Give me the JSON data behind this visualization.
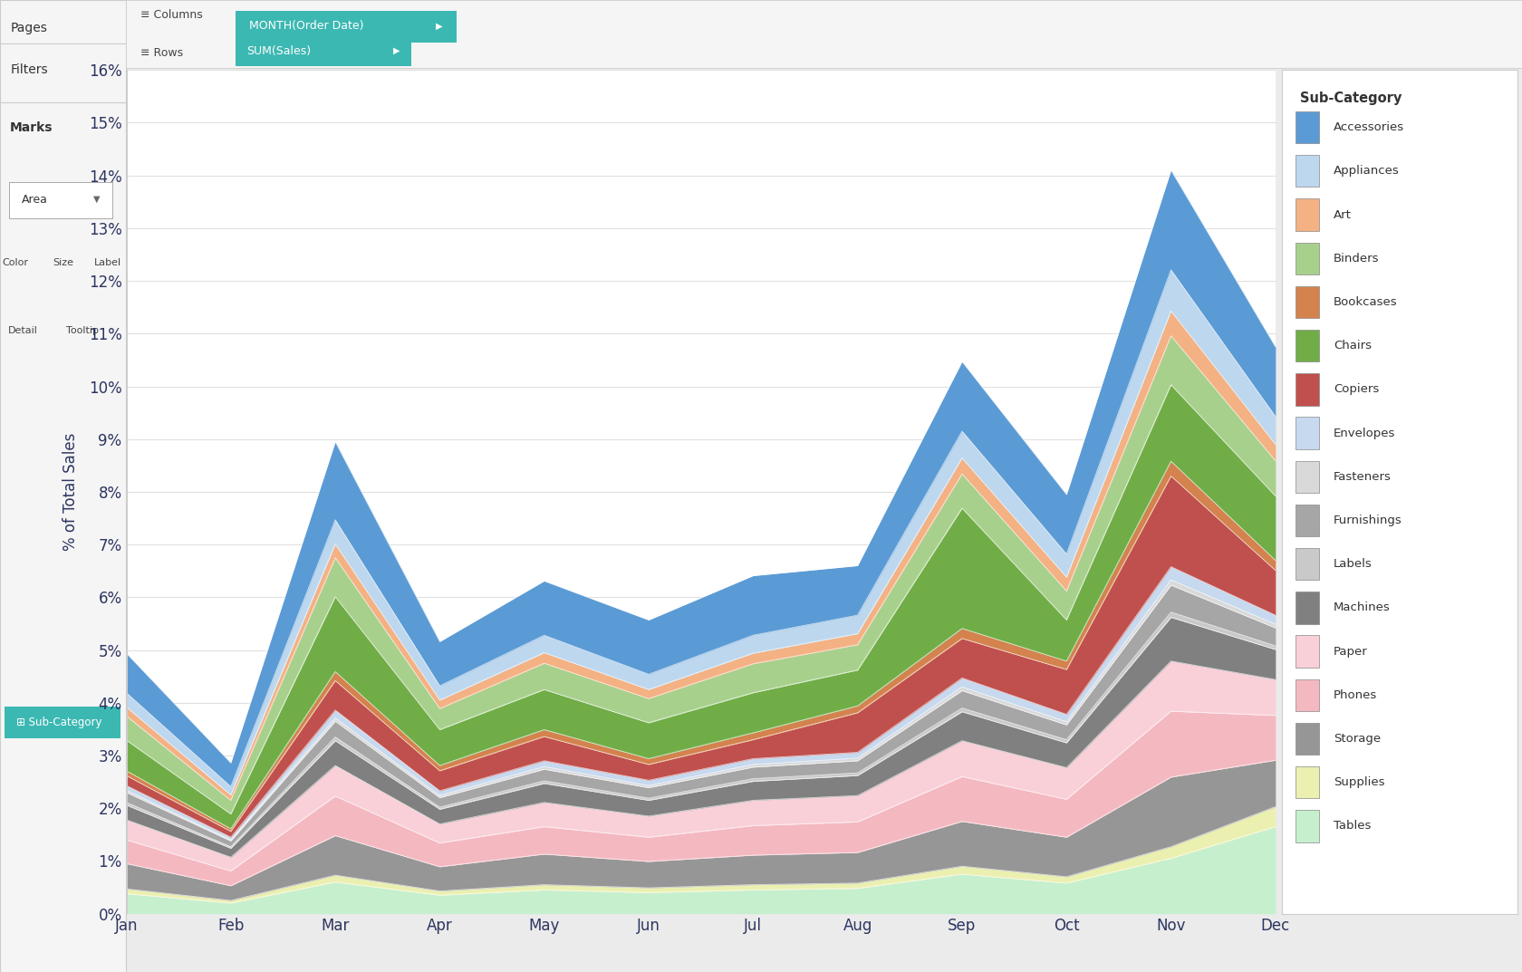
{
  "months": [
    "Jan",
    "Feb",
    "Mar",
    "Apr",
    "May",
    "Jun",
    "Jul",
    "Aug",
    "Sep",
    "Oct",
    "Nov",
    "Dec"
  ],
  "legend_items": [
    "Accessories",
    "Appliances",
    "Art",
    "Binders",
    "Bookcases",
    "Chairs",
    "Copiers",
    "Envelopes",
    "Fasteners",
    "Furnishings",
    "Labels",
    "Machines",
    "Paper",
    "Phones",
    "Storage",
    "Supplies",
    "Tables"
  ],
  "stack_order": [
    "Tables",
    "Supplies",
    "Storage",
    "Phones",
    "Paper",
    "Machines",
    "Labels",
    "Furnishings",
    "Fasteners",
    "Envelopes",
    "Copiers",
    "Bookcases",
    "Chairs",
    "Binders",
    "Art",
    "Appliances",
    "Accessories"
  ],
  "series_data": {
    "Tables": [
      0.38,
      0.2,
      0.6,
      0.35,
      0.45,
      0.4,
      0.45,
      0.48,
      0.75,
      0.58,
      1.05,
      1.65
    ],
    "Supplies": [
      0.09,
      0.05,
      0.13,
      0.08,
      0.1,
      0.09,
      0.1,
      0.1,
      0.15,
      0.12,
      0.22,
      0.38
    ],
    "Storage": [
      0.48,
      0.28,
      0.75,
      0.46,
      0.58,
      0.5,
      0.56,
      0.58,
      0.85,
      0.75,
      1.32,
      0.88
    ],
    "Phones": [
      0.45,
      0.28,
      0.75,
      0.45,
      0.52,
      0.46,
      0.56,
      0.58,
      0.85,
      0.72,
      1.25,
      0.85
    ],
    "Paper": [
      0.38,
      0.26,
      0.58,
      0.36,
      0.46,
      0.4,
      0.48,
      0.5,
      0.68,
      0.6,
      0.95,
      0.68
    ],
    "Machines": [
      0.28,
      0.17,
      0.47,
      0.28,
      0.36,
      0.3,
      0.36,
      0.38,
      0.55,
      0.47,
      0.83,
      0.57
    ],
    "Labels": [
      0.05,
      0.03,
      0.07,
      0.04,
      0.05,
      0.04,
      0.05,
      0.05,
      0.07,
      0.06,
      0.1,
      0.07
    ],
    "Furnishings": [
      0.19,
      0.11,
      0.3,
      0.18,
      0.22,
      0.2,
      0.22,
      0.23,
      0.33,
      0.28,
      0.51,
      0.34
    ],
    "Fasteners": [
      0.04,
      0.02,
      0.06,
      0.04,
      0.05,
      0.04,
      0.05,
      0.05,
      0.07,
      0.06,
      0.1,
      0.07
    ],
    "Envelopes": [
      0.09,
      0.05,
      0.15,
      0.09,
      0.11,
      0.1,
      0.11,
      0.11,
      0.17,
      0.14,
      0.25,
      0.17
    ],
    "Copiers": [
      0.19,
      0.11,
      0.56,
      0.38,
      0.46,
      0.3,
      0.36,
      0.75,
      0.75,
      0.85,
      1.72,
      0.85
    ],
    "Bookcases": [
      0.09,
      0.05,
      0.17,
      0.1,
      0.13,
      0.11,
      0.13,
      0.13,
      0.19,
      0.16,
      0.28,
      0.19
    ],
    "Chairs": [
      0.58,
      0.28,
      1.42,
      0.68,
      0.76,
      0.68,
      0.76,
      0.68,
      2.28,
      0.78,
      1.45,
      1.22
    ],
    "Binders": [
      0.46,
      0.26,
      0.74,
      0.4,
      0.5,
      0.46,
      0.55,
      0.48,
      0.65,
      0.55,
      0.93,
      0.67
    ],
    "Art": [
      0.17,
      0.1,
      0.26,
      0.16,
      0.2,
      0.17,
      0.2,
      0.21,
      0.3,
      0.26,
      0.47,
      0.31
    ],
    "Appliances": [
      0.27,
      0.16,
      0.46,
      0.27,
      0.33,
      0.29,
      0.34,
      0.35,
      0.51,
      0.44,
      0.78,
      0.53
    ],
    "Accessories": [
      0.75,
      0.45,
      1.48,
      0.84,
      1.03,
      1.03,
      1.13,
      0.94,
      1.32,
      1.13,
      1.89,
      1.32
    ]
  },
  "colors_map": {
    "Tables": "#c6efce",
    "Supplies": "#ebf0b0",
    "Storage": "#969696",
    "Phones": "#f4b8c1",
    "Paper": "#f9d0d8",
    "Machines": "#808080",
    "Labels": "#c9c9c9",
    "Furnishings": "#a6a6a6",
    "Fasteners": "#d9d9d9",
    "Envelopes": "#c7d9ef",
    "Copiers": "#c0504d",
    "Bookcases": "#d4824e",
    "Chairs": "#70ad47",
    "Binders": "#a8d08d",
    "Art": "#f4b183",
    "Appliances": "#bdd7ee",
    "Accessories": "#5b9bd5"
  },
  "legend_colors": {
    "Accessories": "#5b9bd5",
    "Appliances": "#bdd7ee",
    "Art": "#f4b183",
    "Binders": "#a8d08d",
    "Bookcases": "#d4824e",
    "Chairs": "#70ad47",
    "Copiers": "#c0504d",
    "Envelopes": "#c7d9ef",
    "Fasteners": "#d9d9d9",
    "Furnishings": "#a6a6a6",
    "Labels": "#c9c9c9",
    "Machines": "#808080",
    "Paper": "#f9d0d8",
    "Phones": "#f4b8c1",
    "Storage": "#969696",
    "Supplies": "#ebf0b0",
    "Tables": "#c6efce"
  },
  "ylabel": "% of Total Sales",
  "legend_title": "Sub-Category",
  "bg_color": "#ffffff",
  "outer_bg": "#ebebeb",
  "panel_bg": "#f5f5f5",
  "text_color": "#2d3561",
  "teal_color": "#3cb8b2"
}
